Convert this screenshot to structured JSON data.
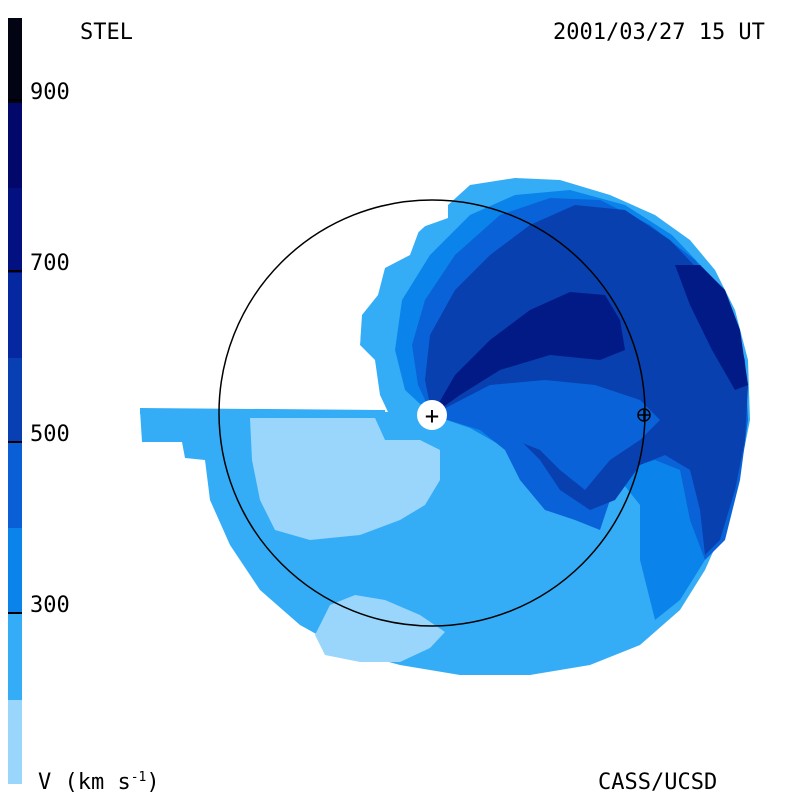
{
  "header": {
    "left": "STEL",
    "right": "2001/03/27 15 UT"
  },
  "footer": {
    "left": "V (km s",
    "left_sup": "-1",
    "left_end": ")",
    "right": "CASS/UCSD"
  },
  "colorbar": {
    "ticks": [
      "900",
      "700",
      "500",
      "300"
    ],
    "colors": [
      "#9ad6fb",
      "#35adf6",
      "#0a84ea",
      "#0a5fd6",
      "#0840b4",
      "#0527a0",
      "#021080",
      "#02086a",
      "#020414"
    ]
  },
  "colors": {
    "v1": "#9ad6fb",
    "v2": "#35adf6",
    "v3": "#0a84ea",
    "v4": "#0a62d8",
    "v5": "#0840b0",
    "v6": "#021a86"
  },
  "markers": {
    "sun": "+",
    "earth": "⊕"
  }
}
